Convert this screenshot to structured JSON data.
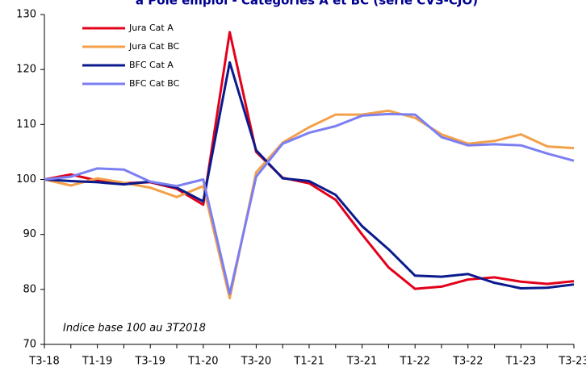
{
  "chart_data": {
    "type": "line",
    "title": "à Pôle emploi - Catégories A et BC (série CVS-CJO)",
    "annotation": "Indice base 100 au 3T2018",
    "categories": [
      "T3-18",
      null,
      "T1-19",
      null,
      "T3-19",
      null,
      "T1-20",
      null,
      "T3-20",
      null,
      "T1-21",
      null,
      "T3-21",
      null,
      "T1-22",
      null,
      "T3-22",
      null,
      "T1-23",
      null,
      "T3-23"
    ],
    "series": [
      {
        "name": "Jura  Cat A",
        "color": "#e2001a",
        "values": [
          100,
          100.9,
          99.8,
          99.3,
          99.5,
          98.3,
          95.4,
          126.8,
          105,
          100.3,
          99.3,
          96.3,
          90,
          84,
          80.1,
          80.5,
          81.8,
          82.2,
          81.4,
          81,
          81.5
        ]
      },
      {
        "name": "Jura  Cat BC",
        "color": "#f4a04a",
        "values": [
          100,
          98.9,
          100.2,
          99.4,
          98.5,
          96.8,
          98.8,
          78.4,
          101.3,
          106.7,
          109.5,
          111.8,
          111.8,
          112.5,
          111.2,
          108.2,
          106.5,
          107,
          108.2,
          106,
          105.7
        ]
      },
      {
        "name": "BFC Cat A",
        "color": "#0b1a8c",
        "values": [
          100,
          99.7,
          99.5,
          99.1,
          99.6,
          98.5,
          96,
          121.3,
          105.3,
          100.2,
          99.7,
          97.2,
          91.5,
          87.3,
          82.5,
          82.3,
          82.8,
          81.2,
          80.2,
          80.3,
          80.9
        ]
      },
      {
        "name": "BFC Cat BC",
        "color": "#7b7ff2",
        "values": [
          100,
          100.5,
          102,
          101.8,
          99.6,
          98.8,
          100,
          79.2,
          100.5,
          106.5,
          108.5,
          109.7,
          111.6,
          111.9,
          111.8,
          107.7,
          106.2,
          106.4,
          106.2,
          104.7,
          103.4
        ]
      }
    ],
    "ylim": [
      70,
      130
    ],
    "yticks": [
      70,
      80,
      90,
      100,
      110,
      120,
      130
    ],
    "grid": false
  }
}
